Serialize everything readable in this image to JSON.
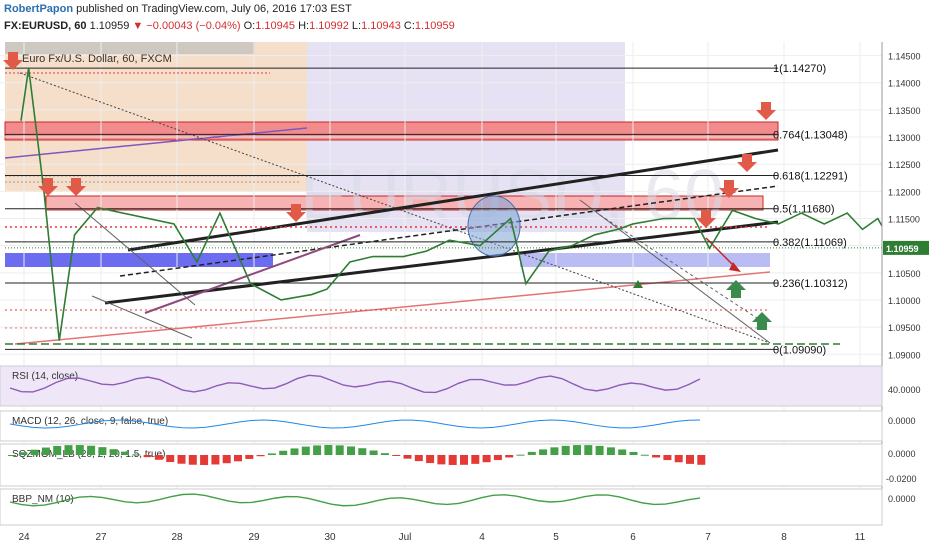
{
  "header": {
    "author": "RobertPapon",
    "published_text": "published on TradingView.com, July 06, 2016 17:03 EST",
    "symbol": "FX:EURUSD, 60",
    "last": "1.10959",
    "change": "▼ −0.00043 (−0.04%)",
    "o_label": "O:",
    "o": "1.10945",
    "h_label": "H:",
    "h": "1.10992",
    "l_label": "L:",
    "l": "1.10943",
    "c_label": "C:",
    "c": "1.10959"
  },
  "chart_data": {
    "type": "candlestick",
    "title": "Euro Fx/U.S. Dollar, 60, FXCM",
    "watermark": "EURUSD, 60",
    "x_ticks": [
      "24",
      "27",
      "28",
      "29",
      "30",
      "Jul",
      "4",
      "5",
      "6",
      "7",
      "8",
      "11"
    ],
    "y_ticks": [
      "1.14500",
      "1.14000",
      "1.13500",
      "1.13000",
      "1.12500",
      "1.12000",
      "1.11500",
      "1.11000",
      "1.10500",
      "1.10000",
      "1.09500",
      "1.09000"
    ],
    "ylim": [
      1.0895,
      1.1475
    ],
    "last_price": "1.10959",
    "last_price_value": 1.10959,
    "fib_levels": [
      {
        "label": "1(1.14270)",
        "value": 1.1427
      },
      {
        "label": "0.764(1.13048)",
        "value": 1.13048
      },
      {
        "label": "0.618(1.12291)",
        "value": 1.12291
      },
      {
        "label": "0.5(1.11680)",
        "value": 1.1168
      },
      {
        "label": "0.382(1.11069)",
        "value": 1.11069
      },
      {
        "label": "0.236(1.10312)",
        "value": 1.10312
      },
      {
        "label": "0(1.09090)",
        "value": 1.0909
      }
    ],
    "price_path": [
      [
        24.0,
        1.133
      ],
      [
        24.1,
        1.1427
      ],
      [
        24.3,
        1.12
      ],
      [
        24.5,
        1.0925
      ],
      [
        24.7,
        1.112
      ],
      [
        25.0,
        1.117
      ],
      [
        26.0,
        1.114
      ],
      [
        26.3,
        1.107
      ],
      [
        26.6,
        1.116
      ],
      [
        27.0,
        1.103
      ],
      [
        27.4,
        1.1
      ],
      [
        27.8,
        1.101
      ],
      [
        28.0,
        1.102
      ],
      [
        28.3,
        1.107
      ],
      [
        28.6,
        1.108
      ],
      [
        29.0,
        1.108
      ],
      [
        29.3,
        1.109
      ],
      [
        29.6,
        1.111
      ],
      [
        30.0,
        1.11
      ],
      [
        30.4,
        1.115
      ],
      [
        30.6,
        1.103
      ],
      [
        30.9,
        1.109
      ],
      [
        31.2,
        1.11
      ],
      [
        31.5,
        1.112
      ],
      [
        31.8,
        1.113
      ],
      [
        32.0,
        1.114
      ],
      [
        32.4,
        1.115
      ],
      [
        32.8,
        1.115
      ],
      [
        33.0,
        1.1095
      ],
      [
        33.3,
        1.1165
      ],
      [
        33.6,
        1.115
      ],
      [
        33.9,
        1.114
      ],
      [
        34.2,
        1.116
      ],
      [
        34.5,
        1.114
      ],
      [
        34.8,
        1.116
      ],
      [
        35.0,
        1.113
      ],
      [
        35.2,
        1.115
      ],
      [
        35.4,
        1.11
      ],
      [
        35.7,
        1.107
      ],
      [
        36.0,
        1.105
      ],
      [
        36.3,
        1.104
      ],
      [
        36.6,
        1.107
      ],
      [
        36.8,
        1.109
      ],
      [
        37.0,
        1.1096
      ]
    ],
    "indicators": [
      {
        "label": "RSI (14, close)",
        "value_label": "40.0000"
      },
      {
        "label": "MACD (12, 26, close, 9, false, true)",
        "value_label": "0.0000"
      },
      {
        "label": "SQZMOM_LB (20, 2, 20, 1.5, true)",
        "value_label": "0.0000",
        "value_label2": "-0.0200"
      },
      {
        "label": "BBP_NM (10)",
        "value_label": "0.0000"
      }
    ]
  }
}
